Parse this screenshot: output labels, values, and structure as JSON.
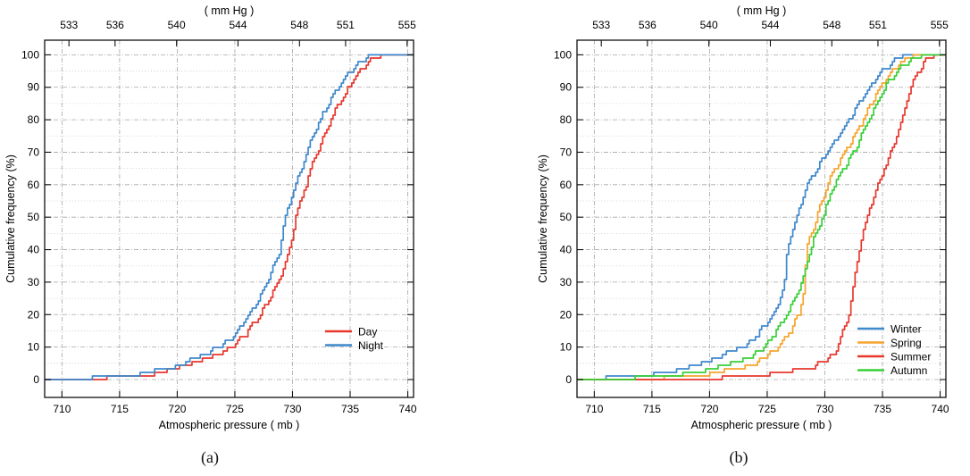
{
  "chart_data": [
    {
      "id": "a",
      "type": "line",
      "caption": "(a)",
      "x2_title": "( mm Hg )",
      "x_title": "Atmospheric pressure ( mb )",
      "y_title": "Cumulative frequency (%)",
      "x_ticks": [
        710,
        715,
        720,
        725,
        730,
        735,
        740
      ],
      "x2_ticks": [
        533,
        536,
        540,
        544,
        548,
        551,
        555
      ],
      "y_ticks": [
        0,
        10,
        20,
        30,
        40,
        50,
        60,
        70,
        80,
        90,
        100
      ],
      "xlim": [
        708.5,
        740.5
      ],
      "ylim": [
        -5.5,
        104.5
      ],
      "x2_factor": 0.750062,
      "grid": true,
      "legend_position": "inside lower right",
      "series": [
        {
          "name": "Day",
          "color": "#e7382e",
          "points": [
            [
              712.6,
              0
            ],
            [
              714.6,
              0.25
            ],
            [
              716.8,
              0.9
            ],
            [
              718.9,
              2.1
            ],
            [
              720.9,
              4
            ],
            [
              722.9,
              6.8
            ],
            [
              724.7,
              10
            ],
            [
              725.9,
              14
            ],
            [
              727.2,
              20
            ],
            [
              728,
              25
            ],
            [
              728.7,
              30
            ],
            [
              729.3,
              35
            ],
            [
              729.75,
              40
            ],
            [
              730,
              45
            ],
            [
              730.25,
              50
            ],
            [
              730.7,
              55
            ],
            [
              731.15,
              60
            ],
            [
              731.6,
              65
            ],
            [
              732.1,
              70
            ],
            [
              732.7,
              75
            ],
            [
              733.3,
              80
            ],
            [
              734.05,
              85
            ],
            [
              734.9,
              90
            ],
            [
              735.5,
              93.5
            ],
            [
              736.1,
              96
            ],
            [
              736.8,
              98.5
            ],
            [
              737.6,
              99.8
            ],
            [
              738.3,
              100
            ]
          ]
        },
        {
          "name": "Night",
          "color": "#3e88cc",
          "points": [
            [
              712,
              0
            ],
            [
              714,
              0.3
            ],
            [
              716,
              1
            ],
            [
              718,
              2.3
            ],
            [
              720,
              4.2
            ],
            [
              722,
              7
            ],
            [
              723.7,
              10
            ],
            [
              725,
              14
            ],
            [
              726.2,
              20
            ],
            [
              727.1,
              25
            ],
            [
              727.8,
              30
            ],
            [
              728.4,
              35
            ],
            [
              728.9,
              40
            ],
            [
              729.1,
              45
            ],
            [
              729.35,
              50
            ],
            [
              729.8,
              55
            ],
            [
              730.3,
              60
            ],
            [
              730.75,
              65
            ],
            [
              731.2,
              70
            ],
            [
              731.8,
              75
            ],
            [
              732.4,
              80
            ],
            [
              733.1,
              85
            ],
            [
              734,
              90
            ],
            [
              734.7,
              93.5
            ],
            [
              735.3,
              96
            ],
            [
              736.1,
              98.5
            ],
            [
              737,
              99.8
            ],
            [
              737.8,
              100
            ]
          ]
        }
      ]
    },
    {
      "id": "b",
      "type": "line",
      "caption": "(b)",
      "x2_title": "( mm Hg )",
      "x_title": "Atmospheric pressure ( mb )",
      "y_title": "Cumulative frequency (%)",
      "x_ticks": [
        710,
        715,
        720,
        725,
        730,
        735,
        740
      ],
      "x2_ticks": [
        533,
        536,
        540,
        544,
        548,
        551,
        555
      ],
      "y_ticks": [
        0,
        10,
        20,
        30,
        40,
        50,
        60,
        70,
        80,
        90,
        100
      ],
      "xlim": [
        708.5,
        740.5
      ],
      "ylim": [
        -5.5,
        104.5
      ],
      "x2_factor": 0.750062,
      "grid": true,
      "legend_position": "inside lower right",
      "series": [
        {
          "name": "Winter",
          "color": "#3e88cc",
          "points": [
            [
              711,
              0
            ],
            [
              713,
              0.3
            ],
            [
              715,
              1
            ],
            [
              717,
              2.4
            ],
            [
              719,
              4.6
            ],
            [
              721,
              7.3
            ],
            [
              723.1,
              10
            ],
            [
              724.4,
              15
            ],
            [
              725.6,
              20
            ],
            [
              726.1,
              25
            ],
            [
              726.5,
              30
            ],
            [
              726.6,
              35
            ],
            [
              726.75,
              40
            ],
            [
              727.1,
              45
            ],
            [
              727.55,
              50
            ],
            [
              728,
              55
            ],
            [
              728.45,
              60
            ],
            [
              729.3,
              65
            ],
            [
              730.2,
              70
            ],
            [
              731.2,
              75
            ],
            [
              732.1,
              80
            ],
            [
              732.95,
              85
            ],
            [
              733.85,
              90
            ],
            [
              735,
              95
            ],
            [
              735.9,
              98
            ],
            [
              736.6,
              99.8
            ],
            [
              737,
              100
            ]
          ]
        },
        {
          "name": "Spring",
          "color": "#f6a42c",
          "points": [
            [
              715,
              0
            ],
            [
              717,
              0.4
            ],
            [
              719,
              1
            ],
            [
              721,
              2
            ],
            [
              722.7,
              3.5
            ],
            [
              724.4,
              5.7
            ],
            [
              726,
              10
            ],
            [
              727,
              15
            ],
            [
              727.75,
              20
            ],
            [
              728.05,
              25
            ],
            [
              728.25,
              30
            ],
            [
              728.3,
              35
            ],
            [
              728.4,
              40
            ],
            [
              728.8,
              45
            ],
            [
              729.3,
              50
            ],
            [
              729.75,
              55
            ],
            [
              730.2,
              60
            ],
            [
              730.9,
              65
            ],
            [
              731.7,
              70
            ],
            [
              732.5,
              75
            ],
            [
              733.3,
              80
            ],
            [
              734,
              85
            ],
            [
              734.75,
              90
            ],
            [
              735.6,
              94
            ],
            [
              736.4,
              97
            ],
            [
              737.2,
              99
            ],
            [
              737.9,
              100
            ]
          ]
        },
        {
          "name": "Summer",
          "color": "#e7382e",
          "points": [
            [
              720.5,
              0
            ],
            [
              722.5,
              0.3
            ],
            [
              724.5,
              0.8
            ],
            [
              726.5,
              1.7
            ],
            [
              728.2,
              3
            ],
            [
              729.3,
              4.3
            ],
            [
              730.2,
              5.7
            ],
            [
              731.1,
              10
            ],
            [
              731.6,
              15
            ],
            [
              732.05,
              20
            ],
            [
              732.3,
              25
            ],
            [
              732.5,
              30
            ],
            [
              732.7,
              35
            ],
            [
              732.95,
              40
            ],
            [
              733.3,
              45
            ],
            [
              733.65,
              50
            ],
            [
              734.1,
              55
            ],
            [
              734.6,
              60
            ],
            [
              735.15,
              65
            ],
            [
              735.7,
              70
            ],
            [
              736.2,
              75
            ],
            [
              736.65,
              80
            ],
            [
              737.05,
              85
            ],
            [
              737.45,
              90
            ],
            [
              737.85,
              93.5
            ],
            [
              738.2,
              95.5
            ],
            [
              738.7,
              98
            ],
            [
              739.3,
              99.6
            ],
            [
              739.9,
              100
            ]
          ]
        },
        {
          "name": "Autumn",
          "color": "#39d039",
          "points": [
            [
              713.5,
              0
            ],
            [
              715.5,
              0.5
            ],
            [
              717.5,
              1.3
            ],
            [
              719.5,
              2.7
            ],
            [
              721,
              4
            ],
            [
              723,
              5.8
            ],
            [
              724.8,
              10
            ],
            [
              725.8,
              15
            ],
            [
              726.7,
              20
            ],
            [
              727.4,
              25
            ],
            [
              728,
              30
            ],
            [
              728.4,
              35
            ],
            [
              728.7,
              40
            ],
            [
              729.2,
              45
            ],
            [
              729.8,
              50
            ],
            [
              730.3,
              55
            ],
            [
              730.75,
              60
            ],
            [
              731.6,
              65
            ],
            [
              732.5,
              70
            ],
            [
              733.1,
              75
            ],
            [
              733.8,
              80
            ],
            [
              734.5,
              85
            ],
            [
              735.2,
              90
            ],
            [
              736,
              94
            ],
            [
              736.9,
              97
            ],
            [
              737.9,
              99.2
            ],
            [
              738.7,
              100
            ]
          ]
        }
      ]
    }
  ]
}
